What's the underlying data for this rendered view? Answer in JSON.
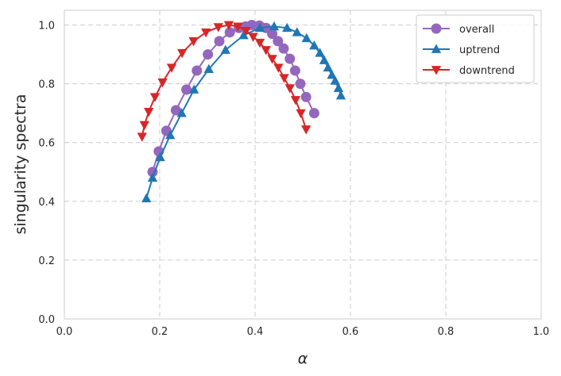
{
  "chart_data": {
    "type": "line",
    "title": "",
    "xlabel": "α",
    "ylabel": "singularity spectra",
    "xlim": [
      0.0,
      1.0
    ],
    "ylim": [
      0.0,
      1.05
    ],
    "xticks": [
      "0.0",
      "0.2",
      "0.4",
      "0.6",
      "0.8",
      "1.0"
    ],
    "yticks": [
      "0.0",
      "0.2",
      "0.4",
      "0.6",
      "0.8",
      "1.0"
    ],
    "grid": true,
    "legend_position": "top-right",
    "series": [
      {
        "name": "overall",
        "color": "#9467bd",
        "marker": "circle",
        "points": [
          [
            0.185,
            0.5
          ],
          [
            0.198,
            0.57
          ],
          [
            0.214,
            0.64
          ],
          [
            0.234,
            0.71
          ],
          [
            0.256,
            0.78
          ],
          [
            0.278,
            0.845
          ],
          [
            0.301,
            0.9
          ],
          [
            0.325,
            0.945
          ],
          [
            0.347,
            0.975
          ],
          [
            0.366,
            0.99
          ],
          [
            0.38,
            0.995
          ],
          [
            0.393,
            1.0
          ],
          [
            0.409,
            0.998
          ],
          [
            0.423,
            0.99
          ],
          [
            0.436,
            0.97
          ],
          [
            0.448,
            0.945
          ],
          [
            0.46,
            0.92
          ],
          [
            0.473,
            0.885
          ],
          [
            0.484,
            0.845
          ],
          [
            0.495,
            0.8
          ],
          [
            0.507,
            0.755
          ],
          [
            0.524,
            0.7
          ]
        ]
      },
      {
        "name": "uptrend",
        "color": "#1f77b4",
        "marker": "triangle-up",
        "points": [
          [
            0.172,
            0.41
          ],
          [
            0.185,
            0.48
          ],
          [
            0.201,
            0.55
          ],
          [
            0.222,
            0.625
          ],
          [
            0.246,
            0.7
          ],
          [
            0.272,
            0.78
          ],
          [
            0.303,
            0.85
          ],
          [
            0.338,
            0.915
          ],
          [
            0.376,
            0.965
          ],
          [
            0.41,
            0.99
          ],
          [
            0.44,
            0.995
          ],
          [
            0.467,
            0.99
          ],
          [
            0.488,
            0.975
          ],
          [
            0.508,
            0.955
          ],
          [
            0.524,
            0.93
          ],
          [
            0.536,
            0.905
          ],
          [
            0.545,
            0.88
          ],
          [
            0.553,
            0.855
          ],
          [
            0.561,
            0.83
          ],
          [
            0.568,
            0.81
          ],
          [
            0.575,
            0.785
          ],
          [
            0.58,
            0.76
          ]
        ]
      },
      {
        "name": "downtrend",
        "color": "#d62728",
        "marker": "triangle-down",
        "points": [
          [
            0.163,
            0.62
          ],
          [
            0.168,
            0.66
          ],
          [
            0.177,
            0.705
          ],
          [
            0.19,
            0.755
          ],
          [
            0.206,
            0.805
          ],
          [
            0.225,
            0.855
          ],
          [
            0.247,
            0.905
          ],
          [
            0.271,
            0.945
          ],
          [
            0.297,
            0.975
          ],
          [
            0.323,
            0.993
          ],
          [
            0.345,
            1.0
          ],
          [
            0.364,
            0.995
          ],
          [
            0.381,
            0.98
          ],
          [
            0.396,
            0.96
          ],
          [
            0.41,
            0.94
          ],
          [
            0.423,
            0.915
          ],
          [
            0.436,
            0.885
          ],
          [
            0.449,
            0.855
          ],
          [
            0.461,
            0.82
          ],
          [
            0.473,
            0.785
          ],
          [
            0.485,
            0.745
          ],
          [
            0.496,
            0.7
          ],
          [
            0.507,
            0.645
          ]
        ]
      }
    ]
  }
}
